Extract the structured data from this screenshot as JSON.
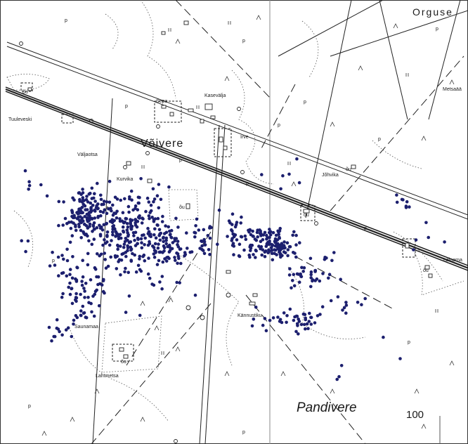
{
  "map": {
    "accent_points_color": "#1c1f6e",
    "places": {
      "orguse": "Orguse",
      "voivere": "Võivere",
      "pandivere": "Pandivere",
      "tuuleveski": "Tuuleveski",
      "valjaotsa": "Väljaotsa",
      "kasevalja": "Kasevälja",
      "sepa": "Sepa",
      "irve": "Irve",
      "kurvika": "Kurvika",
      "johvika": "Jõhvika",
      "metsaaare": "Metsaää",
      "lainemae": "Lainema",
      "kannustiku": "Kännustiku",
      "saunamaa": "Saunamaa",
      "lahtmetsa": "Lahtmetsa"
    },
    "symbols": {
      "p": "p",
      "ou": "õu"
    },
    "scale_label": "100"
  }
}
